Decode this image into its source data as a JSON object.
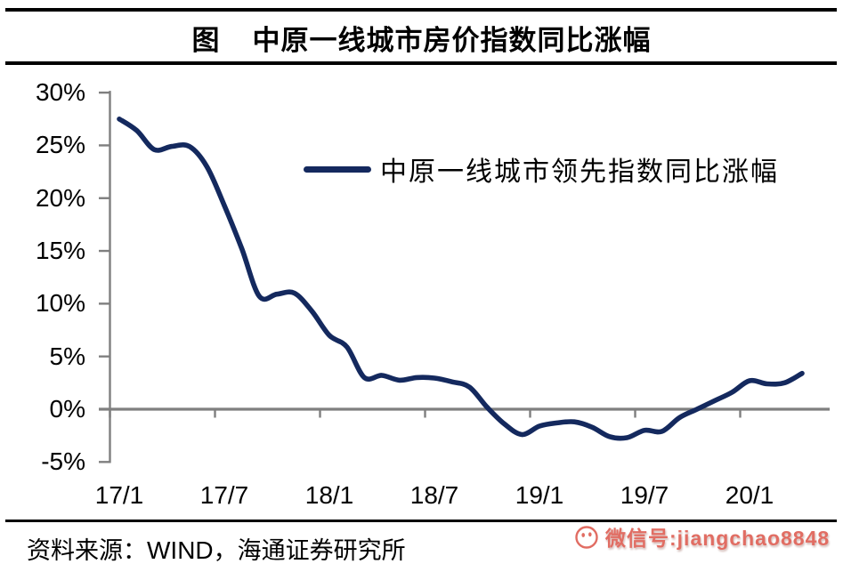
{
  "page": {
    "figure_label": "图",
    "title": "中原一线城市房价指数同比涨幅"
  },
  "chart_data": {
    "type": "line",
    "title": "图 中原一线城市房价指数同比涨幅",
    "xlabel": "",
    "ylabel": "",
    "ylim": [
      -5,
      30
    ],
    "y_step": 5,
    "grid": false,
    "legend_position": "center",
    "smooth": true,
    "axis_color": "#7f7f7f",
    "zero_line_color": "#7f7f7f",
    "y_tick_labels": [
      "30%",
      "25%",
      "20%",
      "15%",
      "10%",
      "5%",
      "0%",
      "-5%"
    ],
    "x_tick_labels": [
      "17/1",
      "17/7",
      "18/1",
      "18/7",
      "19/1",
      "19/7",
      "20/1"
    ],
    "categories": [
      "17/1",
      "17/2",
      "17/3",
      "17/4",
      "17/5",
      "17/6",
      "17/7",
      "17/8",
      "17/9",
      "17/10",
      "17/11",
      "17/12",
      "18/1",
      "18/2",
      "18/3",
      "18/4",
      "18/5",
      "18/6",
      "18/7",
      "18/8",
      "18/9",
      "18/10",
      "18/11",
      "18/12",
      "19/1",
      "19/2",
      "19/3",
      "19/4",
      "19/5",
      "19/6",
      "19/7",
      "19/8",
      "19/9",
      "19/10",
      "19/11",
      "19/12",
      "20/1",
      "20/2",
      "20/3",
      "20/4"
    ],
    "series": [
      {
        "name": "中原一线城市领先指数同比涨幅",
        "color": "#14295E",
        "values": [
          27.5,
          26.4,
          24.6,
          24.9,
          24.9,
          23.0,
          19.3,
          15.2,
          10.7,
          10.9,
          11.0,
          9.3,
          7.0,
          5.9,
          3.0,
          3.2,
          2.75,
          3.0,
          2.95,
          2.6,
          2.1,
          0.2,
          -1.4,
          -2.4,
          -1.6,
          -1.3,
          -1.2,
          -1.7,
          -2.6,
          -2.7,
          -2.0,
          -2.1,
          -0.8,
          0.0,
          0.8,
          1.6,
          2.7,
          2.4,
          2.5,
          3.4
        ]
      }
    ]
  },
  "footer": {
    "source_label": "资料来源：",
    "source_name": "WIND",
    "source_suffix": "，海通证券研究所"
  },
  "watermark": {
    "icon": "wechat-face-icon",
    "text": "微信号:jiangchao8848",
    "color": "#dd5a4e"
  }
}
